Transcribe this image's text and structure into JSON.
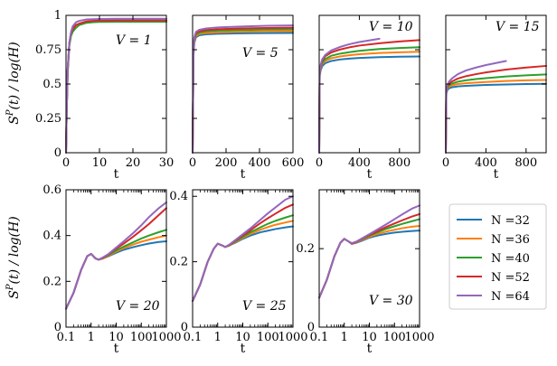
{
  "figure": {
    "ylabel": "S^P(t) / log(H)",
    "ylabel_parts": {
      "symbol": "S",
      "superscript": "P",
      "arg": "(t)",
      "slash": " / log(",
      "hilbert": "H",
      "close": ")"
    },
    "legend_prefix": "N ="
  },
  "colors": {
    "N32": "#1f77b4",
    "N36": "#ff7f0e",
    "N40": "#2ca02c",
    "N52": "#d62728",
    "N64": "#9467bd"
  },
  "chart_data": [
    {
      "type": "line",
      "panel": "V = 1",
      "title": "V = 1",
      "xlabel": "t",
      "xscale": "linear",
      "xlim": [
        0,
        30
      ],
      "ylim": [
        0,
        1
      ],
      "xticks": [
        0,
        10,
        20,
        30
      ],
      "xtick_labels": [
        "0",
        "10",
        "20",
        "30"
      ],
      "yticks": [
        0,
        0.25,
        0.5,
        0.75,
        1
      ],
      "ytick_labels": [
        "0",
        "0.25",
        "0.5",
        "0.75",
        "1"
      ],
      "x": [
        0,
        0.2,
        0.5,
        1,
        1.5,
        2,
        3,
        4,
        6,
        8,
        10,
        15,
        20,
        25,
        30
      ],
      "series": [
        {
          "name": "N =32",
          "key": "N32",
          "values": [
            0,
            0.3,
            0.6,
            0.8,
            0.87,
            0.9,
            0.93,
            0.94,
            0.95,
            0.955,
            0.957,
            0.958,
            0.958,
            0.958,
            0.958
          ]
        },
        {
          "name": "N =36",
          "key": "N36",
          "values": [
            0,
            0.3,
            0.6,
            0.8,
            0.87,
            0.9,
            0.93,
            0.94,
            0.955,
            0.96,
            0.962,
            0.963,
            0.963,
            0.963,
            0.963
          ]
        },
        {
          "name": "N =40",
          "key": "N40",
          "values": [
            0,
            0.3,
            0.58,
            0.78,
            0.85,
            0.88,
            0.91,
            0.93,
            0.945,
            0.95,
            0.952,
            0.953,
            0.953,
            0.953,
            0.953
          ]
        },
        {
          "name": "N =52",
          "key": "N52",
          "values": [
            0,
            0.3,
            0.6,
            0.8,
            0.87,
            0.9,
            0.93,
            0.94,
            0.955,
            0.96,
            0.962,
            0.963,
            0.963,
            0.963,
            0.963
          ]
        },
        {
          "name": "N =64",
          "key": "N64",
          "values": [
            0,
            0.3,
            0.62,
            0.8,
            0.88,
            0.92,
            0.95,
            0.96,
            0.97,
            0.972,
            0.974,
            0.975,
            0.975,
            0.975,
            0.975
          ]
        }
      ]
    },
    {
      "type": "line",
      "panel": "V = 5",
      "title": "V = 5",
      "xlabel": "t",
      "xscale": "linear",
      "xlim": [
        0,
        600
      ],
      "ylim": [
        0,
        1
      ],
      "xticks": [
        0,
        200,
        400,
        600
      ],
      "xtick_labels": [
        "0",
        "200",
        "400",
        "600"
      ],
      "yticks": [
        0,
        0.25,
        0.5,
        0.75,
        1
      ],
      "ytick_labels": [
        "",
        "",
        "",
        "",
        ""
      ],
      "x": [
        0,
        5,
        10,
        20,
        40,
        80,
        150,
        250,
        350,
        450,
        600
      ],
      "series": [
        {
          "name": "N =32",
          "key": "N32",
          "values": [
            0,
            0.7,
            0.8,
            0.84,
            0.855,
            0.862,
            0.866,
            0.868,
            0.87,
            0.871,
            0.872
          ]
        },
        {
          "name": "N =36",
          "key": "N36",
          "values": [
            0,
            0.71,
            0.81,
            0.85,
            0.865,
            0.872,
            0.877,
            0.88,
            0.882,
            0.884,
            0.885
          ]
        },
        {
          "name": "N =40",
          "key": "N40",
          "values": [
            0,
            0.72,
            0.82,
            0.86,
            0.875,
            0.883,
            0.889,
            0.892,
            0.895,
            0.897,
            0.899
          ]
        },
        {
          "name": "N =52",
          "key": "N52",
          "values": [
            0,
            0.72,
            0.83,
            0.87,
            0.885,
            0.893,
            0.899,
            0.903,
            0.906,
            0.908,
            0.91
          ]
        },
        {
          "name": "N =64",
          "key": "N64",
          "values": [
            0,
            0.73,
            0.84,
            0.88,
            0.895,
            0.905,
            0.912,
            0.917,
            0.921,
            0.924,
            0.927
          ]
        }
      ]
    },
    {
      "type": "line",
      "panel": "V = 10",
      "title": "V = 10",
      "xlabel": "t",
      "xscale": "linear",
      "xlim": [
        0,
        1000
      ],
      "ylim": [
        0,
        1
      ],
      "xticks": [
        0,
        400,
        800
      ],
      "xtick_labels": [
        "0",
        "400",
        "800"
      ],
      "yticks": [
        0,
        0.25,
        0.5,
        0.75,
        1
      ],
      "ytick_labels": [
        "",
        "",
        "",
        "",
        ""
      ],
      "x": [
        0,
        5,
        15,
        30,
        60,
        120,
        200,
        300,
        400,
        600,
        800,
        1000
      ],
      "series": [
        {
          "name": "N =32",
          "key": "N32",
          "values": [
            0,
            0.56,
            0.6,
            0.63,
            0.652,
            0.668,
            0.678,
            0.685,
            0.69,
            0.696,
            0.699,
            0.701
          ]
        },
        {
          "name": "N =36",
          "key": "N36",
          "values": [
            0,
            0.57,
            0.61,
            0.645,
            0.668,
            0.688,
            0.7,
            0.71,
            0.717,
            0.726,
            0.731,
            0.735
          ]
        },
        {
          "name": "N =40",
          "key": "N40",
          "values": [
            0,
            0.57,
            0.62,
            0.655,
            0.682,
            0.706,
            0.72,
            0.732,
            0.742,
            0.755,
            0.762,
            0.768
          ]
        },
        {
          "name": "N =52",
          "key": "N52",
          "values": [
            0,
            0.58,
            0.63,
            0.67,
            0.702,
            0.73,
            0.75,
            0.767,
            0.78,
            0.797,
            0.81,
            0.82
          ]
        },
        {
          "name": "N =64",
          "key": "N64",
          "values": [
            0,
            0.58,
            0.64,
            0.68,
            0.712,
            0.745,
            0.768,
            0.79,
            0.806,
            0.83,
            null,
            null
          ]
        }
      ]
    },
    {
      "type": "line",
      "panel": "V = 15",
      "title": "V = 15",
      "xlabel": "t",
      "xscale": "linear",
      "xlim": [
        0,
        1000
      ],
      "ylim": [
        0,
        1
      ],
      "xticks": [
        0,
        400,
        800
      ],
      "xtick_labels": [
        "0",
        "400",
        "800"
      ],
      "yticks": [
        0,
        0.25,
        0.5,
        0.75,
        1
      ],
      "ytick_labels": [
        "",
        "",
        "",
        "",
        ""
      ],
      "x": [
        0,
        5,
        15,
        30,
        60,
        120,
        200,
        300,
        400,
        600,
        800,
        1000
      ],
      "series": [
        {
          "name": "N =32",
          "key": "N32",
          "values": [
            0,
            0.43,
            0.455,
            0.468,
            0.476,
            0.483,
            0.487,
            0.49,
            0.493,
            0.497,
            0.5,
            0.502
          ]
        },
        {
          "name": "N =36",
          "key": "N36",
          "values": [
            0,
            0.44,
            0.465,
            0.48,
            0.49,
            0.5,
            0.506,
            0.511,
            0.515,
            0.522,
            0.527,
            0.53
          ]
        },
        {
          "name": "N =40",
          "key": "N40",
          "values": [
            0,
            0.44,
            0.472,
            0.49,
            0.503,
            0.517,
            0.527,
            0.536,
            0.543,
            0.555,
            0.563,
            0.57
          ]
        },
        {
          "name": "N =52",
          "key": "N52",
          "values": [
            0,
            0.45,
            0.48,
            0.5,
            0.518,
            0.54,
            0.557,
            0.572,
            0.585,
            0.605,
            0.62,
            0.632
          ]
        },
        {
          "name": "N =64",
          "key": "N64",
          "values": [
            0,
            0.45,
            0.49,
            0.515,
            0.54,
            0.572,
            0.598,
            0.62,
            0.638,
            0.668,
            null,
            null
          ]
        }
      ]
    },
    {
      "type": "line",
      "panel": "V = 20",
      "title": "V = 20",
      "xlabel": "t",
      "xscale": "log",
      "xlim": [
        0.1,
        1000
      ],
      "ylim": [
        0,
        0.6
      ],
      "xticks": [
        0.1,
        1,
        10,
        100,
        1000
      ],
      "xtick_labels": [
        "0.1",
        "1",
        "10",
        "100",
        "1000"
      ],
      "yticks": [
        0,
        0.2,
        0.4,
        0.6
      ],
      "ytick_labels": [
        "0",
        "0.2",
        "0.4",
        "0.6"
      ],
      "x": [
        0.1,
        0.2,
        0.4,
        0.7,
        1,
        1.5,
        2,
        3,
        5,
        10,
        20,
        50,
        100,
        200,
        500,
        1000
      ],
      "series": [
        {
          "name": "N =32",
          "key": "N32",
          "values": [
            0.08,
            0.15,
            0.25,
            0.31,
            0.32,
            0.3,
            0.295,
            0.3,
            0.31,
            0.325,
            0.338,
            0.35,
            0.358,
            0.365,
            0.372,
            0.375
          ]
        },
        {
          "name": "N =36",
          "key": "N36",
          "values": [
            0.08,
            0.15,
            0.25,
            0.31,
            0.32,
            0.3,
            0.295,
            0.3,
            0.312,
            0.33,
            0.345,
            0.362,
            0.373,
            0.382,
            0.393,
            0.4
          ]
        },
        {
          "name": "N =40",
          "key": "N40",
          "values": [
            0.08,
            0.15,
            0.25,
            0.31,
            0.32,
            0.3,
            0.295,
            0.302,
            0.315,
            0.335,
            0.352,
            0.372,
            0.387,
            0.4,
            0.415,
            0.425
          ]
        },
        {
          "name": "N =52",
          "key": "N52",
          "values": [
            0.08,
            0.15,
            0.25,
            0.31,
            0.32,
            0.3,
            0.295,
            0.303,
            0.318,
            0.343,
            0.365,
            0.397,
            0.423,
            0.45,
            0.49,
            0.52
          ]
        },
        {
          "name": "N =64",
          "key": "N64",
          "values": [
            0.08,
            0.15,
            0.25,
            0.31,
            0.32,
            0.3,
            0.295,
            0.305,
            0.32,
            0.348,
            0.375,
            0.413,
            0.445,
            0.48,
            0.52,
            0.545
          ]
        }
      ]
    },
    {
      "type": "line",
      "panel": "V = 25",
      "title": "V = 25",
      "xlabel": "t",
      "xscale": "log",
      "xlim": [
        0.1,
        1000
      ],
      "ylim": [
        0,
        0.42
      ],
      "xticks": [
        0.1,
        1,
        10,
        100,
        1000
      ],
      "xtick_labels": [
        "0.1",
        "1",
        "10",
        "100",
        "1000"
      ],
      "yticks": [
        0,
        0.2,
        0.4
      ],
      "ytick_labels": [
        "0",
        "0.2",
        "0.4"
      ],
      "x": [
        0.1,
        0.2,
        0.4,
        0.7,
        1,
        1.5,
        2,
        3,
        5,
        10,
        20,
        50,
        100,
        200,
        500,
        1000
      ],
      "series": [
        {
          "name": "N =32",
          "key": "N32",
          "values": [
            0.08,
            0.13,
            0.2,
            0.24,
            0.255,
            0.25,
            0.245,
            0.25,
            0.258,
            0.27,
            0.28,
            0.29,
            0.295,
            0.3,
            0.305,
            0.308
          ]
        },
        {
          "name": "N =36",
          "key": "N36",
          "values": [
            0.08,
            0.13,
            0.2,
            0.24,
            0.255,
            0.25,
            0.245,
            0.25,
            0.26,
            0.273,
            0.285,
            0.298,
            0.306,
            0.313,
            0.32,
            0.325
          ]
        },
        {
          "name": "N =40",
          "key": "N40",
          "values": [
            0.08,
            0.13,
            0.2,
            0.24,
            0.255,
            0.25,
            0.245,
            0.251,
            0.262,
            0.276,
            0.29,
            0.305,
            0.316,
            0.325,
            0.335,
            0.342
          ]
        },
        {
          "name": "N =52",
          "key": "N52",
          "values": [
            0.08,
            0.13,
            0.2,
            0.24,
            0.255,
            0.25,
            0.245,
            0.252,
            0.264,
            0.28,
            0.296,
            0.318,
            0.333,
            0.347,
            0.365,
            0.375
          ]
        },
        {
          "name": "N =64",
          "key": "N64",
          "values": [
            0.08,
            0.13,
            0.2,
            0.24,
            0.255,
            0.25,
            0.245,
            0.253,
            0.266,
            0.284,
            0.302,
            0.328,
            0.348,
            0.366,
            0.39,
            0.4
          ]
        }
      ]
    },
    {
      "type": "line",
      "panel": "V = 30",
      "title": "V = 30",
      "xlabel": "t",
      "xscale": "log",
      "xlim": [
        0.1,
        1000
      ],
      "ylim": [
        0,
        0.35
      ],
      "xticks": [
        0.1,
        1,
        10,
        100,
        1000
      ],
      "xtick_labels": [
        "0.1",
        "1",
        "10",
        "100",
        "1000"
      ],
      "yticks": [
        0,
        0.2
      ],
      "ytick_labels": [
        "0",
        "0.2"
      ],
      "x": [
        0.1,
        0.2,
        0.4,
        0.7,
        1,
        1.5,
        2,
        3,
        5,
        10,
        20,
        50,
        100,
        200,
        500,
        1000
      ],
      "series": [
        {
          "name": "N =32",
          "key": "N32",
          "values": [
            0.075,
            0.12,
            0.18,
            0.215,
            0.225,
            0.218,
            0.212,
            0.215,
            0.22,
            0.228,
            0.233,
            0.238,
            0.241,
            0.243,
            0.245,
            0.246
          ]
        },
        {
          "name": "N =36",
          "key": "N36",
          "values": [
            0.075,
            0.12,
            0.18,
            0.215,
            0.225,
            0.218,
            0.212,
            0.216,
            0.222,
            0.23,
            0.237,
            0.244,
            0.248,
            0.252,
            0.256,
            0.258
          ]
        },
        {
          "name": "N =40",
          "key": "N40",
          "values": [
            0.075,
            0.12,
            0.18,
            0.215,
            0.225,
            0.218,
            0.213,
            0.217,
            0.224,
            0.233,
            0.241,
            0.251,
            0.257,
            0.263,
            0.27,
            0.275
          ]
        },
        {
          "name": "N =52",
          "key": "N52",
          "values": [
            0.075,
            0.12,
            0.18,
            0.215,
            0.225,
            0.218,
            0.213,
            0.217,
            0.225,
            0.235,
            0.244,
            0.256,
            0.264,
            0.272,
            0.282,
            0.288
          ]
        },
        {
          "name": "N =64",
          "key": "N64",
          "values": [
            0.075,
            0.12,
            0.18,
            0.215,
            0.225,
            0.218,
            0.214,
            0.218,
            0.226,
            0.237,
            0.248,
            0.263,
            0.275,
            0.287,
            0.302,
            0.31
          ]
        }
      ]
    }
  ],
  "legend": [
    {
      "key": "N32",
      "label": "N =32"
    },
    {
      "key": "N36",
      "label": "N =36"
    },
    {
      "key": "N40",
      "label": "N =40"
    },
    {
      "key": "N52",
      "label": "N =52"
    },
    {
      "key": "N64",
      "label": "N =64"
    }
  ]
}
